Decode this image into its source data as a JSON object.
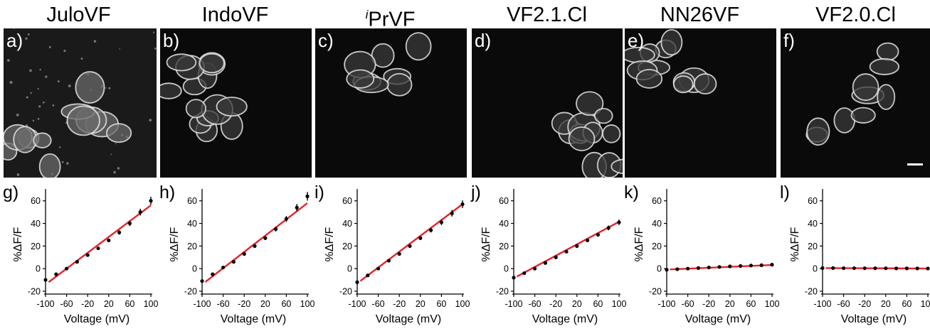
{
  "panels": [
    {
      "title": "JuloVF",
      "micro_letter": "a)",
      "plot_letter": "g)",
      "seed": 11
    },
    {
      "title": "IndoVF",
      "micro_letter": "b)",
      "plot_letter": "h)",
      "seed": 23
    },
    {
      "title_prefix": "i",
      "title": "PrVF",
      "micro_letter": "c)",
      "plot_letter": "i)",
      "seed": 37
    },
    {
      "title": "VF2.1.Cl",
      "micro_letter": "d)",
      "plot_letter": "j)",
      "seed": 41
    },
    {
      "title": "NN26VF",
      "micro_letter": "e)",
      "plot_letter": "k)",
      "seed": 53
    },
    {
      "title": "VF2.0.Cl",
      "micro_letter": "f)",
      "plot_letter": "l)",
      "seed": 67
    }
  ],
  "axes": {
    "ylabel": "%ΔF/F",
    "xlabel": "Voltage (mV)",
    "yticks": [
      -20,
      0,
      20,
      40,
      60
    ],
    "xticks": [
      -100,
      -60,
      -20,
      20,
      60,
      100
    ],
    "xlim": [
      -100,
      100
    ],
    "ylim": [
      -20,
      68
    ]
  },
  "colors": {
    "fit_line": "#e8202a",
    "points": "#000000",
    "micro_background": "#0a0a0a",
    "micro_membrane": "#e6e6e6"
  },
  "chart_data": [
    {
      "type": "scatter",
      "panel": "g",
      "xlabel": "Voltage (mV)",
      "ylabel": "%ΔF/F",
      "xlim": [
        -100,
        100
      ],
      "ylim": [
        -20,
        60
      ],
      "x": [
        -100,
        -80,
        -60,
        -40,
        -20,
        0,
        20,
        40,
        60,
        80,
        100
      ],
      "y": [
        -10,
        -5,
        0,
        6,
        12,
        18,
        25,
        32,
        40,
        50,
        60
      ],
      "fit": {
        "slope": 0.35,
        "intercept": 21
      }
    },
    {
      "type": "scatter",
      "panel": "h",
      "xlabel": "Voltage (mV)",
      "ylabel": "%ΔF/F",
      "xlim": [
        -100,
        100
      ],
      "ylim": [
        -20,
        60
      ],
      "x": [
        -100,
        -80,
        -60,
        -40,
        -20,
        0,
        20,
        40,
        60,
        80,
        100
      ],
      "y": [
        -11,
        -5,
        1,
        6,
        13,
        20,
        27,
        35,
        44,
        54,
        64
      ],
      "fit": {
        "slope": 0.36,
        "intercept": 22
      }
    },
    {
      "type": "scatter",
      "panel": "i",
      "xlabel": "Voltage (mV)",
      "ylabel": "%ΔF/F",
      "xlim": [
        -100,
        100
      ],
      "ylim": [
        -20,
        60
      ],
      "x": [
        -100,
        -80,
        -60,
        -40,
        -20,
        0,
        20,
        40,
        60,
        80,
        100
      ],
      "y": [
        -12,
        -6,
        0,
        7,
        13,
        20,
        27,
        34,
        41,
        49,
        57
      ],
      "fit": {
        "slope": 0.35,
        "intercept": 22
      }
    },
    {
      "type": "scatter",
      "panel": "j",
      "xlabel": "Voltage (mV)",
      "ylabel": "%ΔF/F",
      "xlim": [
        -100,
        100
      ],
      "ylim": [
        -20,
        60
      ],
      "x": [
        -100,
        -80,
        -60,
        -40,
        -20,
        0,
        20,
        40,
        60,
        80,
        100
      ],
      "y": [
        -8,
        -4,
        0,
        5,
        10,
        15,
        20,
        25,
        30,
        36,
        41
      ],
      "fit": {
        "slope": 0.25,
        "intercept": 16.5
      }
    },
    {
      "type": "scatter",
      "panel": "k",
      "xlabel": "Voltage (mV)",
      "ylabel": "%ΔF/F",
      "xlim": [
        -100,
        100
      ],
      "ylim": [
        -20,
        60
      ],
      "x": [
        -100,
        -80,
        -60,
        -40,
        -20,
        0,
        20,
        40,
        60,
        80,
        100
      ],
      "y": [
        -1,
        -0.5,
        0,
        0.5,
        1,
        1.5,
        2,
        2.3,
        2.7,
        3,
        3.5
      ],
      "fit": {
        "slope": 0.02,
        "intercept": 1.2
      }
    },
    {
      "type": "scatter",
      "panel": "l",
      "xlabel": "Voltage (mV)",
      "ylabel": "%ΔF/F",
      "xlim": [
        -100,
        100
      ],
      "ylim": [
        -20,
        60
      ],
      "x": [
        -100,
        -80,
        -60,
        -40,
        -20,
        0,
        20,
        40,
        60,
        80,
        100
      ],
      "y": [
        0.5,
        0.5,
        0.4,
        0.4,
        0.3,
        0.3,
        0.3,
        0.2,
        0.2,
        0.2,
        0.1
      ],
      "fit": {
        "slope": -0.002,
        "intercept": 0.3
      }
    }
  ]
}
